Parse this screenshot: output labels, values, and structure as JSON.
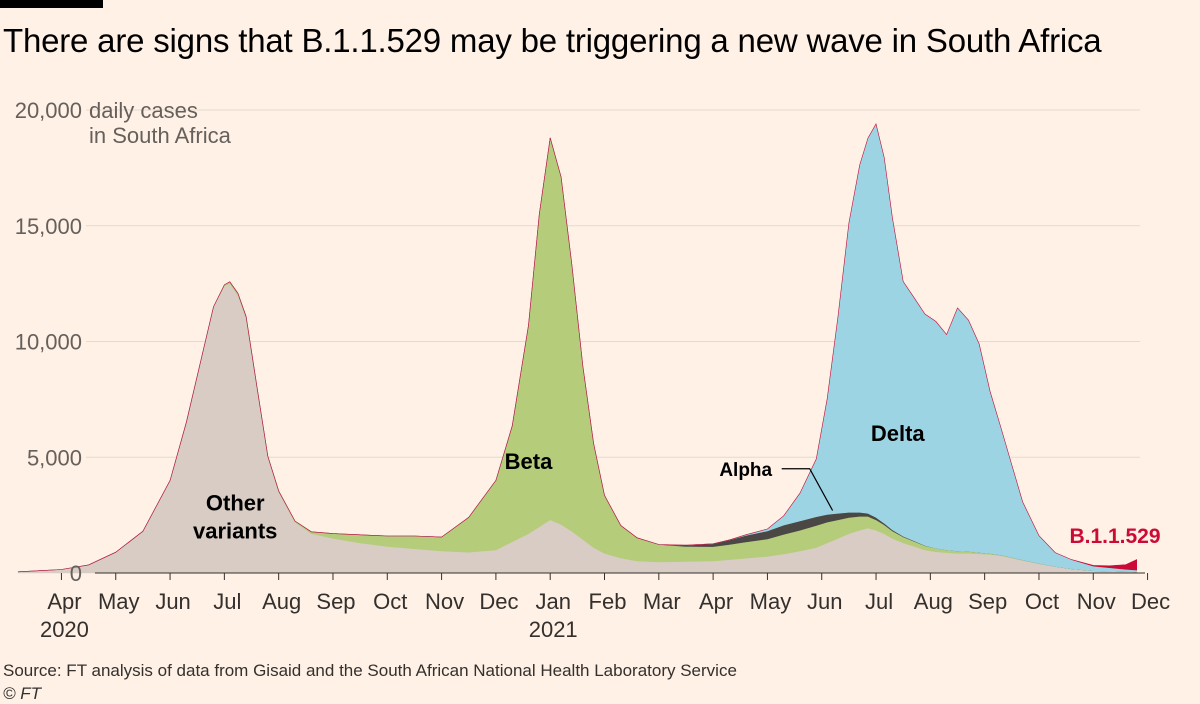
{
  "title": "There are signs that B.1.1.529 may be triggering a new wave in South Africa",
  "source": "Source: FT analysis of data from Gisaid and the South African National Health Laboratory Service",
  "copyright": "© FT",
  "chart_data": {
    "type": "area",
    "stacked": true,
    "ylabel_line1": "daily cases",
    "ylabel_line2": "in South Africa",
    "ylim": [
      0,
      20000
    ],
    "yticks": [
      {
        "value": 0,
        "label": "0"
      },
      {
        "value": 5000,
        "label": "5,000"
      },
      {
        "value": 10000,
        "label": "10,000"
      },
      {
        "value": 15000,
        "label": "15,000"
      },
      {
        "value": 20000,
        "label": "20,000"
      }
    ],
    "x_unit": "months since start of March 2020",
    "xlim": [
      0.2,
      21.1
    ],
    "xticks": [
      {
        "value": 1.0,
        "label": "Apr",
        "year": "2020"
      },
      {
        "value": 2.0,
        "label": "May"
      },
      {
        "value": 3.0,
        "label": "Jun"
      },
      {
        "value": 4.0,
        "label": "Jul"
      },
      {
        "value": 5.0,
        "label": "Aug"
      },
      {
        "value": 6.0,
        "label": "Sep"
      },
      {
        "value": 7.0,
        "label": "Oct"
      },
      {
        "value": 8.0,
        "label": "Nov"
      },
      {
        "value": 9.0,
        "label": "Dec"
      },
      {
        "value": 10.0,
        "label": "Jan",
        "year": "2021"
      },
      {
        "value": 11.0,
        "label": "Feb"
      },
      {
        "value": 12.0,
        "label": "Mar"
      },
      {
        "value": 13.0,
        "label": "Apr"
      },
      {
        "value": 14.0,
        "label": "May"
      },
      {
        "value": 15.0,
        "label": "Jun"
      },
      {
        "value": 16.0,
        "label": "Jul"
      },
      {
        "value": 17.0,
        "label": "Aug"
      },
      {
        "value": 18.0,
        "label": "Sep"
      },
      {
        "value": 19.0,
        "label": "Oct"
      },
      {
        "value": 20.0,
        "label": "Nov"
      },
      {
        "value": 21.0,
        "label": "Dec"
      }
    ],
    "x": [
      0.2,
      0.6,
      1.0,
      1.5,
      2.0,
      2.5,
      3.0,
      3.3,
      3.6,
      3.8,
      4.0,
      4.1,
      4.25,
      4.4,
      4.6,
      4.8,
      5.0,
      5.3,
      5.6,
      6.0,
      6.5,
      7.0,
      7.5,
      8.0,
      8.5,
      9.0,
      9.3,
      9.6,
      9.8,
      10.0,
      10.2,
      10.4,
      10.6,
      10.8,
      11.0,
      11.3,
      11.6,
      12.0,
      12.5,
      13.0,
      13.3,
      13.6,
      14.0,
      14.3,
      14.6,
      14.9,
      15.1,
      15.3,
      15.5,
      15.7,
      15.85,
      16.0,
      16.15,
      16.3,
      16.5,
      16.7,
      16.9,
      17.1,
      17.3,
      17.5,
      17.7,
      17.9,
      18.1,
      18.3,
      18.5,
      18.7,
      19.0,
      19.3,
      19.6,
      20.0,
      20.3,
      20.6,
      20.8
    ],
    "series": [
      {
        "name": "Other variants",
        "label": "Other\nvariants",
        "color": "#d8ccc4",
        "values": [
          50,
          100,
          150,
          350,
          900,
          1800,
          4000,
          6500,
          9500,
          11500,
          12400,
          12500,
          12000,
          11000,
          8000,
          5000,
          3500,
          2200,
          1700,
          1500,
          1300,
          1150,
          1050,
          950,
          900,
          1000,
          1350,
          1700,
          2000,
          2300,
          2100,
          1800,
          1450,
          1100,
          850,
          650,
          520,
          480,
          500,
          520,
          580,
          640,
          720,
          820,
          950,
          1100,
          1300,
          1500,
          1700,
          1850,
          1950,
          1850,
          1700,
          1500,
          1300,
          1150,
          1000,
          920,
          880,
          850,
          850,
          830,
          800,
          750,
          650,
          550,
          400,
          280,
          180,
          100,
          80,
          60,
          50
        ]
      },
      {
        "name": "Beta",
        "label": "Beta",
        "color": "#b5cc7a",
        "values": [
          0,
          0,
          0,
          0,
          0,
          0,
          0,
          0,
          0,
          0,
          50,
          80,
          80,
          80,
          60,
          50,
          40,
          40,
          80,
          200,
          350,
          450,
          550,
          600,
          1500,
          3000,
          5000,
          9000,
          13500,
          16500,
          15000,
          11500,
          7500,
          4500,
          2500,
          1400,
          1000,
          750,
          650,
          620,
          650,
          700,
          750,
          850,
          900,
          950,
          900,
          800,
          700,
          600,
          500,
          450,
          380,
          320,
          260,
          220,
          180,
          150,
          120,
          100,
          80,
          60,
          40,
          30,
          20,
          15,
          10,
          0,
          0,
          0,
          0,
          0,
          0
        ]
      },
      {
        "name": "Alpha",
        "label": "Alpha",
        "color": "#4a4744",
        "values": [
          0,
          0,
          0,
          0,
          0,
          0,
          0,
          0,
          0,
          0,
          0,
          0,
          0,
          0,
          0,
          0,
          0,
          0,
          0,
          0,
          0,
          0,
          0,
          0,
          0,
          0,
          0,
          0,
          0,
          0,
          0,
          0,
          0,
          0,
          0,
          0,
          0,
          0,
          50,
          120,
          200,
          280,
          350,
          400,
          400,
          380,
          330,
          280,
          220,
          170,
          130,
          100,
          70,
          50,
          30,
          20,
          10,
          0,
          0,
          0,
          0,
          0,
          0,
          0,
          0,
          0,
          0,
          0,
          0,
          0,
          0,
          0,
          0
        ]
      },
      {
        "name": "Delta",
        "label": "Delta",
        "color": "#9dd4e3",
        "values": [
          0,
          0,
          0,
          0,
          0,
          0,
          0,
          0,
          0,
          0,
          0,
          0,
          0,
          0,
          0,
          0,
          0,
          0,
          0,
          0,
          0,
          0,
          0,
          0,
          0,
          0,
          0,
          0,
          0,
          0,
          0,
          0,
          0,
          0,
          0,
          0,
          0,
          0,
          0,
          0,
          0,
          30,
          80,
          400,
          1200,
          2500,
          5000,
          8500,
          12500,
          15000,
          16200,
          17000,
          15800,
          13500,
          11000,
          10500,
          10000,
          9800,
          9300,
          10500,
          10000,
          9000,
          7000,
          5500,
          4000,
          2500,
          1200,
          600,
          400,
          200,
          150,
          100,
          80
        ]
      },
      {
        "name": "B.1.1.529",
        "label": "B.1.1.529",
        "color": "#cc0a36",
        "values": [
          0,
          0,
          0,
          0,
          0,
          0,
          0,
          0,
          0,
          0,
          0,
          0,
          0,
          0,
          0,
          0,
          0,
          0,
          0,
          0,
          0,
          0,
          0,
          0,
          0,
          0,
          0,
          0,
          0,
          0,
          0,
          0,
          0,
          0,
          0,
          0,
          0,
          0,
          0,
          0,
          0,
          0,
          0,
          0,
          0,
          0,
          0,
          0,
          0,
          0,
          0,
          0,
          0,
          0,
          0,
          0,
          0,
          0,
          0,
          0,
          0,
          0,
          0,
          0,
          0,
          0,
          0,
          0,
          0,
          30,
          80,
          200,
          450
        ]
      }
    ],
    "annotations": [
      {
        "series": "Other variants",
        "text_lines": [
          "Other",
          "variants"
        ],
        "x": 4.2,
        "y": 2700,
        "color": "#000000"
      },
      {
        "series": "Beta",
        "text_lines": [
          "Beta"
        ],
        "x": 9.6,
        "y": 4500,
        "color": "#000000"
      },
      {
        "series": "Delta",
        "text_lines": [
          "Delta"
        ],
        "x": 16.4,
        "y": 5700,
        "color": "#000000"
      },
      {
        "series": "Alpha",
        "text_lines": [
          "Alpha"
        ],
        "x": 13.6,
        "y": 4200,
        "color": "#000000",
        "leader_to": [
          15.2,
          2700
        ]
      },
      {
        "series": "B.1.1.529",
        "text_lines": [
          "B.1.1.529"
        ],
        "x": 20.4,
        "y": 1300,
        "color": "#cc0a36"
      }
    ]
  }
}
